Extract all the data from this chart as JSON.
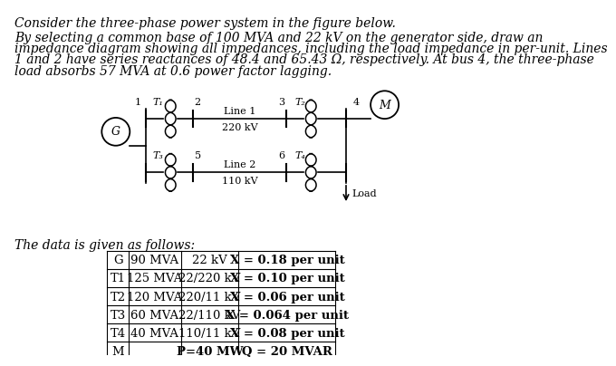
{
  "title_line1": "Consider the three-phase power system in the figure below.",
  "body_text": "By selecting a common base of 100 MVA and 22 kV on the generator side, draw an\nimpedance diagram showing all impedances, including the load impedance in per-unit. Lines\n1 and 2 have series reactances of 48.4 and 65.43 Ω, respectively. At bus 4, the three-phase\nload absorbs 57 MVA at 0.6 power factor lagging.",
  "data_label": "The data is given as follows:",
  "table_data": [
    [
      "G",
      "90 MVA",
      "22 kV",
      "X = 0.18 per unit"
    ],
    [
      "T1",
      "125 MVA",
      "22/220 kV",
      "X = 0.10 per unit"
    ],
    [
      "T2",
      "120 MVA",
      "220/11 kV",
      "X = 0.06 per unit"
    ],
    [
      "T3",
      "60 MVA",
      "22/110 kV",
      "X = 0.064 per unit"
    ],
    [
      "T4",
      "40 MVA",
      "110/11 kV",
      "X = 0.08 per unit"
    ],
    [
      "M",
      "",
      "P=40 MW",
      "Q = 20 MVAR"
    ]
  ],
  "bg_color": "#ffffff",
  "text_color": "#000000",
  "font_size_title": 10.0,
  "font_size_body": 10.0,
  "font_size_table": 9.5,
  "font_size_circuit": 8.0
}
